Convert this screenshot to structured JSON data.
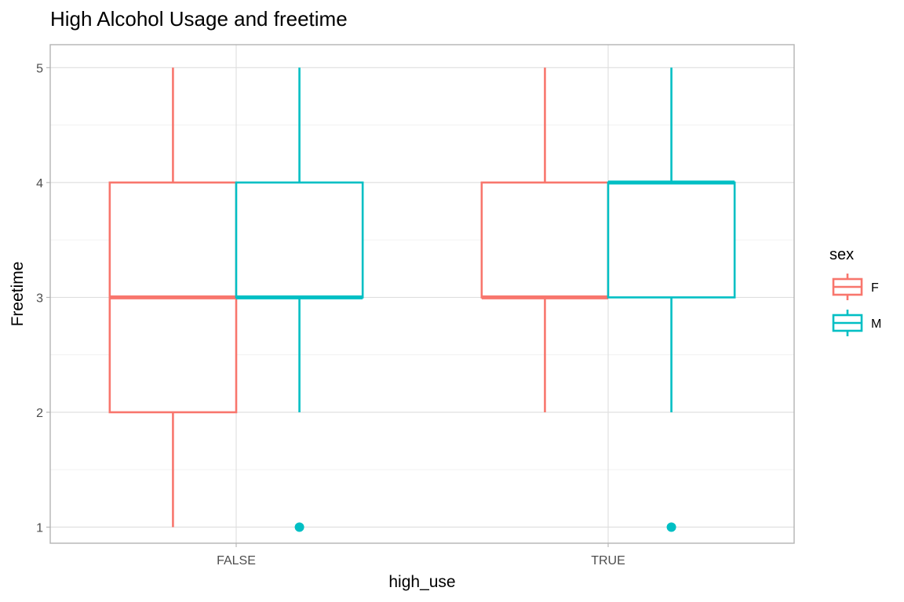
{
  "chart_data": {
    "type": "boxplot",
    "title": "High Alcohol Usage and freetime",
    "xlabel": "high_use",
    "ylabel": "Freetime",
    "categories": [
      "FALSE",
      "TRUE"
    ],
    "ylim": [
      0.86,
      5.2
    ],
    "yticks": [
      1,
      2,
      3,
      4,
      5
    ],
    "grid": true,
    "legend": {
      "title": "sex",
      "position": "right"
    },
    "series": [
      {
        "name": "F",
        "color": "#F8766D",
        "boxes": [
          {
            "category": "FALSE",
            "whisker_low": 1,
            "q1": 2,
            "median": 3,
            "q3": 4,
            "whisker_high": 5,
            "outliers": []
          },
          {
            "category": "TRUE",
            "whisker_low": 2,
            "q1": 3,
            "median": 3,
            "q3": 4,
            "whisker_high": 5,
            "outliers": []
          }
        ]
      },
      {
        "name": "M",
        "color": "#00BFC4",
        "boxes": [
          {
            "category": "FALSE",
            "whisker_low": 2,
            "q1": 3,
            "median": 3,
            "q3": 4,
            "whisker_high": 5,
            "outliers": [
              1
            ]
          },
          {
            "category": "TRUE",
            "whisker_low": 2,
            "q1": 3,
            "median": 4,
            "q3": 4,
            "whisker_high": 5,
            "outliers": [
              1
            ]
          }
        ]
      }
    ]
  }
}
